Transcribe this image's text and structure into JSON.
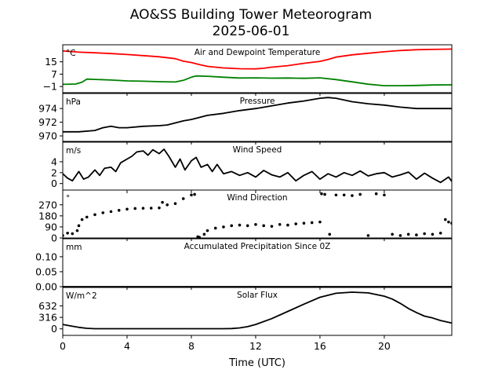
{
  "title": "AO&SS Building Tower Meteorogram",
  "subtitle": "2025-06-01",
  "xlabel": "Time (UTC)",
  "x_ticks": [
    0,
    4,
    8,
    12,
    16,
    20
  ],
  "x_range": [
    0,
    24.2
  ],
  "chart_data": [
    {
      "type": "line",
      "title": "Air and Dewpoint Temperature",
      "unit": "°C",
      "ylim": [
        -5,
        26
      ],
      "yticks": [
        -1,
        7,
        15
      ],
      "series": [
        {
          "color": "#ff0000",
          "x": [
            0,
            1,
            2,
            3,
            4,
            5,
            6,
            7,
            7.5,
            8,
            8.5,
            9,
            10,
            11,
            12,
            12.5,
            13,
            14,
            15,
            16,
            16.5,
            17,
            18,
            19,
            20,
            21,
            22,
            23,
            24.2
          ],
          "y": [
            22,
            21.2,
            20.8,
            20.3,
            19.7,
            19,
            18.2,
            17,
            15.4,
            14.5,
            13.2,
            12,
            11,
            10.5,
            10.4,
            10.8,
            11.5,
            12.5,
            14,
            15.3,
            16.5,
            18,
            19.5,
            20.5,
            21.5,
            22.3,
            22.8,
            23,
            23.2
          ]
        },
        {
          "color": "#008000",
          "x": [
            0,
            0.8,
            1.2,
            1.5,
            2,
            3,
            4,
            5,
            6,
            7,
            7.5,
            8,
            8.3,
            9,
            10,
            11,
            12,
            13,
            14,
            15,
            16,
            17,
            18,
            19,
            20,
            21,
            22,
            23,
            24.2
          ],
          "y": [
            0.4,
            0.6,
            1.8,
            3.8,
            3.6,
            3.2,
            2.6,
            2.4,
            2.1,
            1.9,
            3,
            5,
            5.8,
            5.6,
            5,
            4.5,
            4.6,
            4.4,
            4.5,
            4.3,
            4.6,
            3.5,
            2,
            0.5,
            -0.5,
            -0.5,
            -0.3,
            0,
            0.1
          ]
        }
      ]
    },
    {
      "type": "line",
      "title": "Pressure",
      "unit": "hPa",
      "ylim": [
        969.2,
        976.2
      ],
      "yticks": [
        970,
        972,
        974
      ],
      "series": [
        {
          "color": "#000000",
          "x": [
            0,
            1,
            2,
            2.5,
            3,
            3.5,
            4,
            5,
            6,
            6.5,
            7,
            7.5,
            8,
            9,
            10,
            11,
            12,
            13,
            14,
            15,
            16,
            16.5,
            17,
            18,
            19,
            20,
            21,
            22,
            23,
            24.2
          ],
          "y": [
            970.6,
            970.6,
            970.8,
            971.2,
            971.4,
            971.2,
            971.2,
            971.4,
            971.5,
            971.6,
            971.9,
            972.2,
            972.4,
            973.0,
            973.3,
            973.7,
            974.0,
            974.4,
            974.8,
            975.1,
            975.5,
            975.6,
            975.5,
            975.0,
            974.7,
            974.5,
            974.2,
            974.0,
            974.0,
            974.0
          ]
        }
      ]
    },
    {
      "type": "line",
      "title": "Wind Speed",
      "unit": "m/s",
      "ylim": [
        -1.2,
        7.6
      ],
      "yticks": [
        0,
        2,
        4
      ],
      "series": [
        {
          "color": "#000000",
          "x": [
            0,
            0.3,
            0.6,
            1,
            1.3,
            1.6,
            2,
            2.3,
            2.6,
            3,
            3.3,
            3.6,
            4,
            4.3,
            4.6,
            5,
            5.3,
            5.6,
            6,
            6.3,
            6.6,
            7,
            7.3,
            7.6,
            8,
            8.3,
            8.6,
            9,
            9.3,
            9.6,
            10,
            10.5,
            11,
            11.5,
            12,
            12.5,
            13,
            13.5,
            14,
            14.5,
            15,
            15.5,
            16,
            16.5,
            17,
            17.5,
            18,
            18.5,
            19,
            19.5,
            20,
            20.5,
            21,
            21.5,
            22,
            22.5,
            23,
            23.5,
            24,
            24.2
          ],
          "y": [
            1.8,
            1.0,
            0.5,
            2.2,
            0.8,
            1.2,
            2.5,
            1.5,
            2.8,
            3.0,
            2.2,
            3.8,
            4.5,
            5.0,
            5.8,
            6.0,
            5.2,
            6.2,
            5.5,
            6.3,
            5.0,
            3.0,
            4.5,
            2.5,
            4.2,
            4.8,
            3.0,
            3.5,
            2.2,
            3.5,
            1.8,
            2.2,
            1.5,
            2.0,
            1.2,
            2.4,
            1.6,
            1.2,
            2.0,
            0.5,
            1.5,
            2.2,
            0.8,
            1.8,
            1.2,
            2.0,
            1.5,
            2.3,
            1.4,
            1.8,
            2.0,
            1.2,
            1.6,
            2.1,
            0.8,
            1.9,
            1.0,
            0.2,
            1.2,
            0.4
          ]
        }
      ]
    },
    {
      "type": "scatter",
      "title": "Wind Direction",
      "unit": "°",
      "ylim": [
        0,
        390
      ],
      "yticks": [
        0,
        90,
        180,
        270
      ],
      "series": [
        {
          "color": "#000000",
          "x": [
            0,
            0.3,
            0.6,
            0.9,
            1.0,
            1.2,
            1.5,
            2,
            2.5,
            3,
            3.5,
            4,
            4.5,
            5,
            5.5,
            6,
            6.2,
            6.5,
            7,
            7.5,
            8,
            8.2,
            8.4,
            8.5,
            8.8,
            9,
            9.5,
            10,
            10.5,
            11,
            11.5,
            12,
            12.5,
            13,
            13.5,
            14,
            14.5,
            15,
            15.5,
            16,
            16.1,
            16.3,
            16.6,
            17,
            17.5,
            18,
            18.5,
            19,
            19.5,
            20,
            20.5,
            21,
            21.5,
            22,
            22.5,
            23,
            23.5,
            23.8,
            24,
            24.2
          ],
          "y": [
            20,
            40,
            35,
            60,
            100,
            150,
            170,
            190,
            205,
            215,
            225,
            235,
            240,
            242,
            243,
            245,
            290,
            270,
            280,
            320,
            350,
            355,
            10,
            5,
            30,
            60,
            80,
            90,
            100,
            105,
            100,
            110,
            100,
            95,
            110,
            105,
            115,
            120,
            125,
            130,
            360,
            355,
            30,
            350,
            350,
            345,
            355,
            20,
            360,
            350,
            30,
            20,
            30,
            25,
            35,
            30,
            40,
            150,
            130,
            120
          ]
        }
      ]
    },
    {
      "type": "line",
      "title": "Accumulated Precipitation Since 0Z",
      "unit": "mm",
      "ylim": [
        0,
        0.16
      ],
      "yticks": [
        0.0,
        0.05,
        0.1
      ],
      "ytick_labels": [
        "0.00",
        "0.05",
        "0.10"
      ],
      "series": [
        {
          "color": "#000000",
          "x": [
            0,
            24.2
          ],
          "y": [
            0,
            0
          ]
        }
      ]
    },
    {
      "type": "line",
      "title": "Solar Flux",
      "unit": "W/m^2",
      "ylim": [
        -180,
        1140
      ],
      "yticks": [
        0,
        316,
        632
      ],
      "series": [
        {
          "color": "#000000",
          "x": [
            0,
            0.5,
            1,
            1.5,
            2,
            4,
            6,
            8,
            10,
            10.5,
            11,
            11.5,
            12,
            13,
            14,
            15,
            16,
            17,
            18,
            19,
            20,
            20.5,
            21,
            21.5,
            22,
            22.5,
            23,
            23.5,
            24,
            24.2
          ],
          "y": [
            120,
            80,
            40,
            15,
            5,
            5,
            5,
            5,
            5,
            8,
            25,
            60,
            120,
            280,
            480,
            680,
            870,
            980,
            1010,
            990,
            900,
            820,
            700,
            560,
            450,
            350,
            300,
            230,
            180,
            160
          ]
        }
      ]
    }
  ]
}
